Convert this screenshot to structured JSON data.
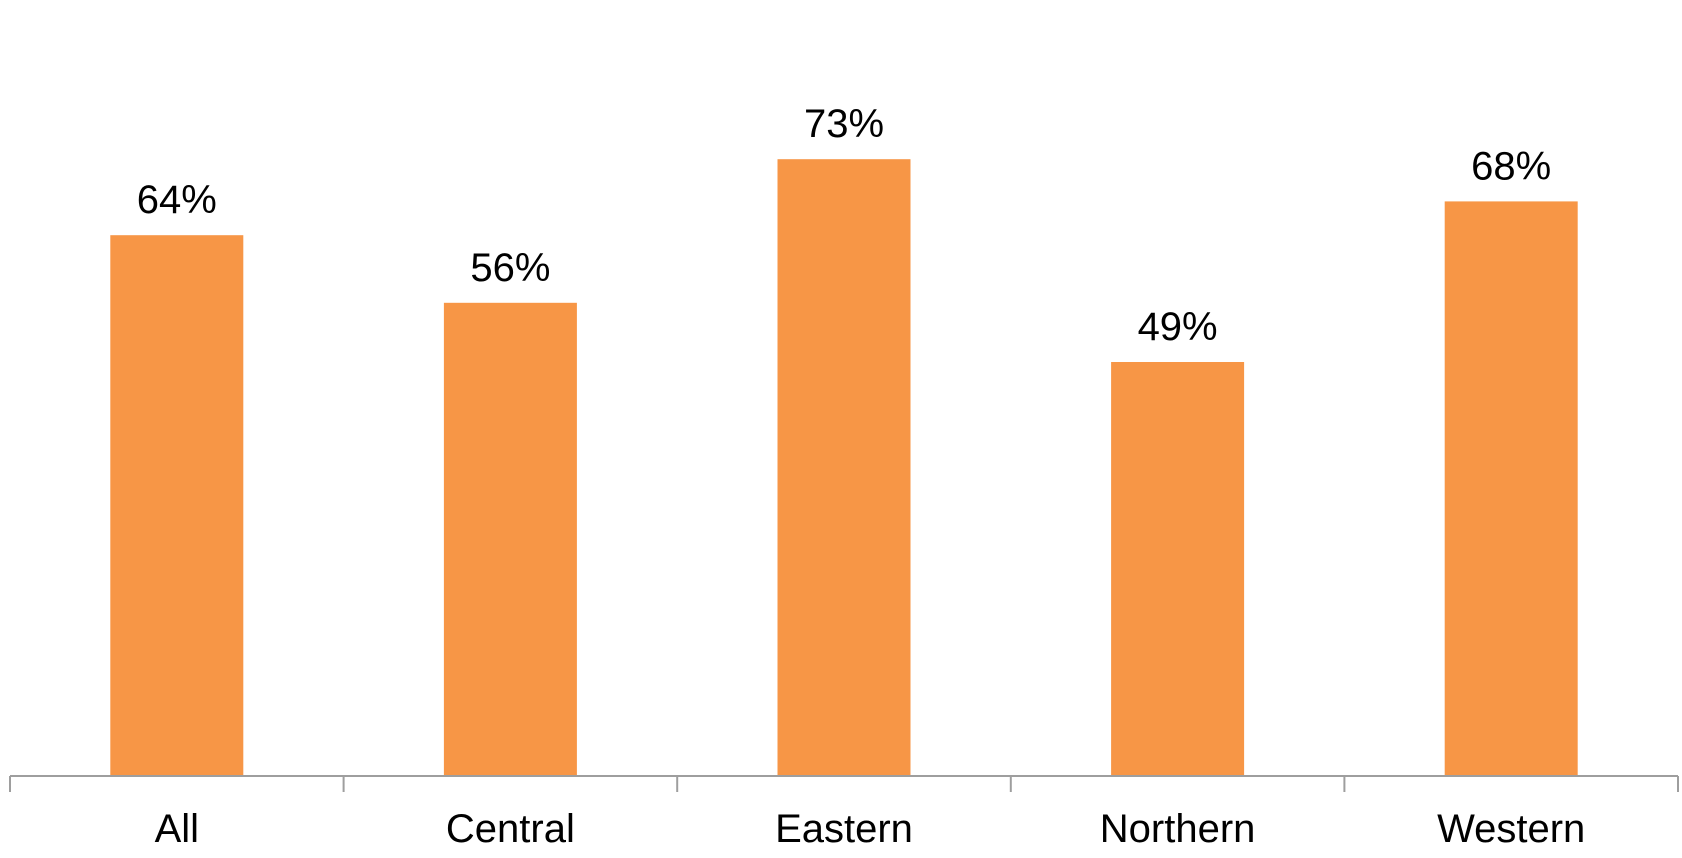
{
  "chart_data": {
    "type": "bar",
    "categories": [
      "All",
      "Central",
      "Eastern",
      "Northern",
      "Western"
    ],
    "values": [
      64,
      56,
      73,
      49,
      68
    ],
    "value_labels": [
      "64%",
      "56%",
      "73%",
      "49%",
      "68%"
    ],
    "ylim": [
      0,
      80
    ],
    "grid": false,
    "legend": false,
    "title": "",
    "xlabel": "",
    "ylabel": "",
    "bar_color": "#F79646",
    "axis_color": "#9E9E9E"
  }
}
